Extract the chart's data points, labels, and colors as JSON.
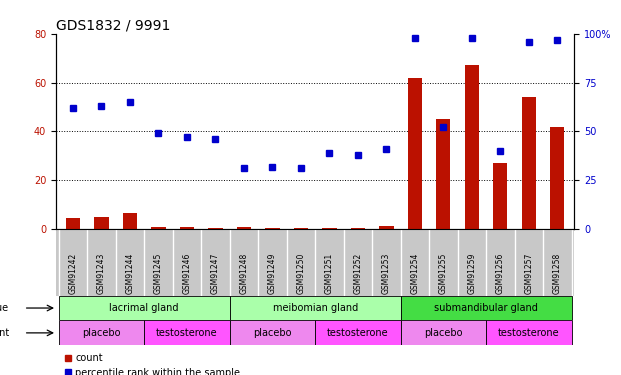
{
  "title": "GDS1832 / 9991",
  "samples": [
    "GSM91242",
    "GSM91243",
    "GSM91244",
    "GSM91245",
    "GSM91246",
    "GSM91247",
    "GSM91248",
    "GSM91249",
    "GSM91250",
    "GSM91251",
    "GSM91252",
    "GSM91253",
    "GSM91254",
    "GSM91255",
    "GSM91259",
    "GSM91256",
    "GSM91257",
    "GSM91258"
  ],
  "count": [
    4.5,
    5.0,
    6.5,
    0.8,
    0.7,
    0.6,
    0.7,
    0.6,
    0.5,
    0.6,
    0.5,
    1.2,
    62.0,
    45.0,
    67.0,
    27.0,
    54.0,
    42.0
  ],
  "percentile": [
    62,
    63,
    65,
    49,
    47,
    46,
    31,
    32,
    31,
    39,
    38,
    41,
    98,
    52,
    98,
    40,
    96,
    97
  ],
  "tissue_groups": [
    {
      "label": "lacrimal gland",
      "start": 0,
      "end": 6,
      "color": "#AAFFAA"
    },
    {
      "label": "meibomian gland",
      "start": 6,
      "end": 12,
      "color": "#AAFFAA"
    },
    {
      "label": "submandibular gland",
      "start": 12,
      "end": 18,
      "color": "#44DD44"
    }
  ],
  "agent_groups": [
    {
      "label": "placebo",
      "start": 0,
      "end": 3,
      "color": "#EE88EE"
    },
    {
      "label": "testosterone",
      "start": 3,
      "end": 6,
      "color": "#FF55FF"
    },
    {
      "label": "placebo",
      "start": 6,
      "end": 9,
      "color": "#EE88EE"
    },
    {
      "label": "testosterone",
      "start": 9,
      "end": 12,
      "color": "#FF55FF"
    },
    {
      "label": "placebo",
      "start": 12,
      "end": 15,
      "color": "#EE88EE"
    },
    {
      "label": "testosterone",
      "start": 15,
      "end": 18,
      "color": "#FF55FF"
    }
  ],
  "ylim_left": [
    0,
    80
  ],
  "ylim_right": [
    0,
    100
  ],
  "yticks_left": [
    0,
    20,
    40,
    60,
    80
  ],
  "yticks_right": [
    0,
    25,
    50,
    75,
    100
  ],
  "grid_lines": [
    20,
    40,
    60
  ],
  "bar_color": "#BB1100",
  "dot_color": "#0000CC",
  "title_fontsize": 10,
  "tick_fontsize": 7,
  "label_fontsize": 7,
  "sample_fontsize": 5.5,
  "legend_items": [
    "count",
    "percentile rank within the sample"
  ]
}
